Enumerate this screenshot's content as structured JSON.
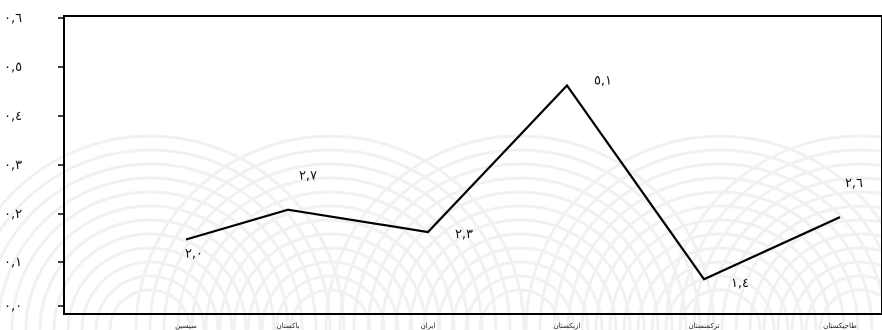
{
  "chart_data": {
    "type": "line",
    "title": "",
    "xlabel": "",
    "ylabel": "",
    "categories": [
      "سيسين",
      "باكستان",
      "ايران",
      "ازبكستان",
      "تركمنستان",
      "طاجيكستان"
    ],
    "y_tick_labels": [
      "٠,٠",
      "٠,١",
      "٠,٢",
      "٠,٣",
      "٠,٤",
      "٠,٥",
      "٠,٦"
    ],
    "ylim": [
      0,
      0.6
    ],
    "grid": false,
    "series": [
      {
        "values": [
          0.15,
          0.21,
          0.165,
          0.46,
          0.07,
          0.195
        ],
        "data_labels": [
          "٢,٠",
          "٢,٧",
          "٢,٣",
          "٥,١",
          "١,٤",
          "٢,٦"
        ]
      }
    ],
    "colors": {
      "line": "#000000",
      "axis": "#000000",
      "background": "#ffffff",
      "watermark": "#f1f1f1"
    }
  }
}
